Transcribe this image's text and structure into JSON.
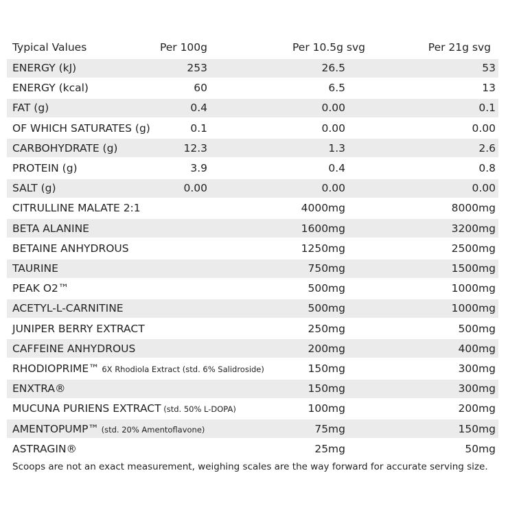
{
  "table": {
    "header": [
      "Typical Values",
      "Per 100g",
      "Per 10.5g svg",
      "Per 21g svg"
    ],
    "rows": [
      {
        "label": "ENERGY (kJ)",
        "per_100g": "253",
        "per_serving": "26.5",
        "per_double": "53"
      },
      {
        "label": "ENERGY (kcal)",
        "per_100g": "60",
        "per_serving": "6.5",
        "per_double": "13"
      },
      {
        "label": "FAT (g)",
        "per_100g": "0.4",
        "per_serving": "0.00",
        "per_double": "0.1"
      },
      {
        "label": "OF WHICH SATURATES (g)",
        "per_100g": "0.1",
        "per_serving": "0.00",
        "per_double": "0.00"
      },
      {
        "label": "CARBOHYDRATE (g)",
        "per_100g": "12.3",
        "per_serving": "1.3",
        "per_double": "2.6"
      },
      {
        "label": "PROTEIN (g)",
        "per_100g": "3.9",
        "per_serving": "0.4",
        "per_double": "0.8"
      },
      {
        "label": "SALT (g)",
        "per_100g": "0.00",
        "per_serving": "0.00",
        "per_double": "0.00"
      },
      {
        "label": "CITRULLINE MALATE  2:1",
        "per_serving": "4000mg",
        "per_double": "8000mg"
      },
      {
        "label": "BETA ALANINE",
        "per_serving": "1600mg",
        "per_double": "3200mg"
      },
      {
        "label": "BETAINE ANHYDROUS",
        "per_serving": "1250mg",
        "per_double": "2500mg"
      },
      {
        "label": "TAURINE",
        "per_serving": "750mg",
        "per_double": "1500mg"
      },
      {
        "label": "PEAK O2™",
        "per_serving": "500mg",
        "per_double": "1000mg"
      },
      {
        "label": "ACETYL-L-CARNITINE",
        "per_serving": "500mg",
        "per_double": "1000mg"
      },
      {
        "label": "JUNIPER BERRY EXTRACT",
        "per_serving": "250mg",
        "per_double": "500mg"
      },
      {
        "label": "CAFFEINE ANHYDROUS",
        "per_serving": "200mg",
        "per_double": "400mg"
      },
      {
        "label": "RHODIOPRIME™",
        "note": "6X Rhodiola Extract (std. 6% Salidroside)",
        "per_serving": "150mg",
        "per_double": "300mg"
      },
      {
        "label": "ENXTRA®",
        "per_serving": "150mg",
        "per_double": "300mg"
      },
      {
        "label": "MUCUNA PURIENS EXTRACT",
        "note": "(std. 50% L-DOPA)",
        "per_serving": "100mg",
        "per_double": "200mg"
      },
      {
        "label": "AMENTOPUMP™",
        "note": "(std. 20% Amentoflavone)",
        "per_serving": "75mg",
        "per_double": "150mg"
      },
      {
        "label": "ASTRAGIN®",
        "per_serving": "25mg",
        "per_double": "50mg"
      }
    ],
    "footnote": "Scoops are not an exact measurement, weighing scales are the way forward for accurate serving size."
  }
}
